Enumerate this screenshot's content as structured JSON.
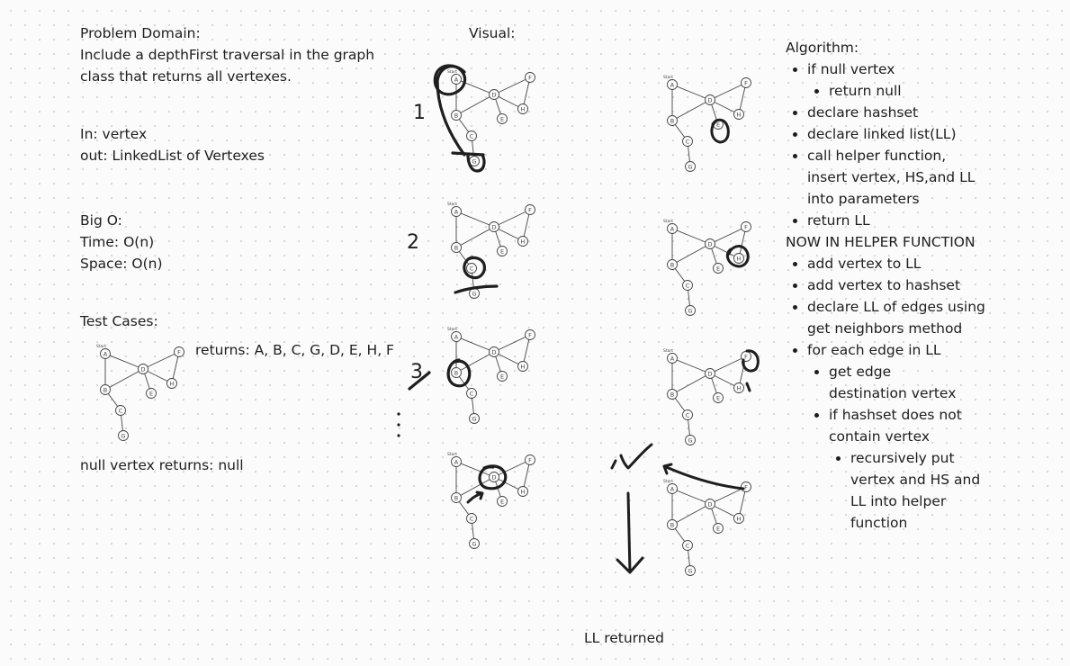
{
  "problem": {
    "heading": "Problem Domain:",
    "line1": "Include a depthFirst traversal in the graph",
    "line2": "class that returns all vertexes."
  },
  "io": {
    "input": "In: vertex",
    "output": "out: LinkedList of Vertexes"
  },
  "big_o": {
    "heading": "Big O:",
    "time": "Time: O(n)",
    "space": "Space: O(n)"
  },
  "tests": {
    "heading": "Test Cases:",
    "returns": "returns: A, B, C, G, D, E, H, F",
    "null_case": "null vertex returns: null"
  },
  "visual": {
    "heading": "Visual:",
    "step_labels": [
      "1",
      "2",
      "3"
    ],
    "ll_returned": "LL returned"
  },
  "graph": {
    "start_label": "Start",
    "node_labels": [
      "A",
      "B",
      "C",
      "D",
      "E",
      "F",
      "G",
      "H"
    ]
  },
  "algorithm": {
    "heading": "Algorithm:",
    "s1": "if null vertex",
    "s1a": "return null",
    "s2": "declare hashset",
    "s3": "declare linked list(LL)",
    "s4": "call helper function, insert vertex, HS,and LL into parameters",
    "s5": "return LL",
    "helper_heading": "NOW IN HELPER FUNCTION",
    "h1": "add vertex to LL",
    "h2": "add vertex to hashset",
    "h3": "declare LL of edges using get neighbors method",
    "h4": "for each edge in LL",
    "h4a": "get edge destination vertex",
    "h4b": "if hashset does not contain vertex",
    "h4b1": "recursively put vertex and HS and LL into helper function"
  },
  "colors": {
    "ink": "#1e1e1e",
    "sketch": "#444444",
    "background": "#fbfbfb"
  }
}
